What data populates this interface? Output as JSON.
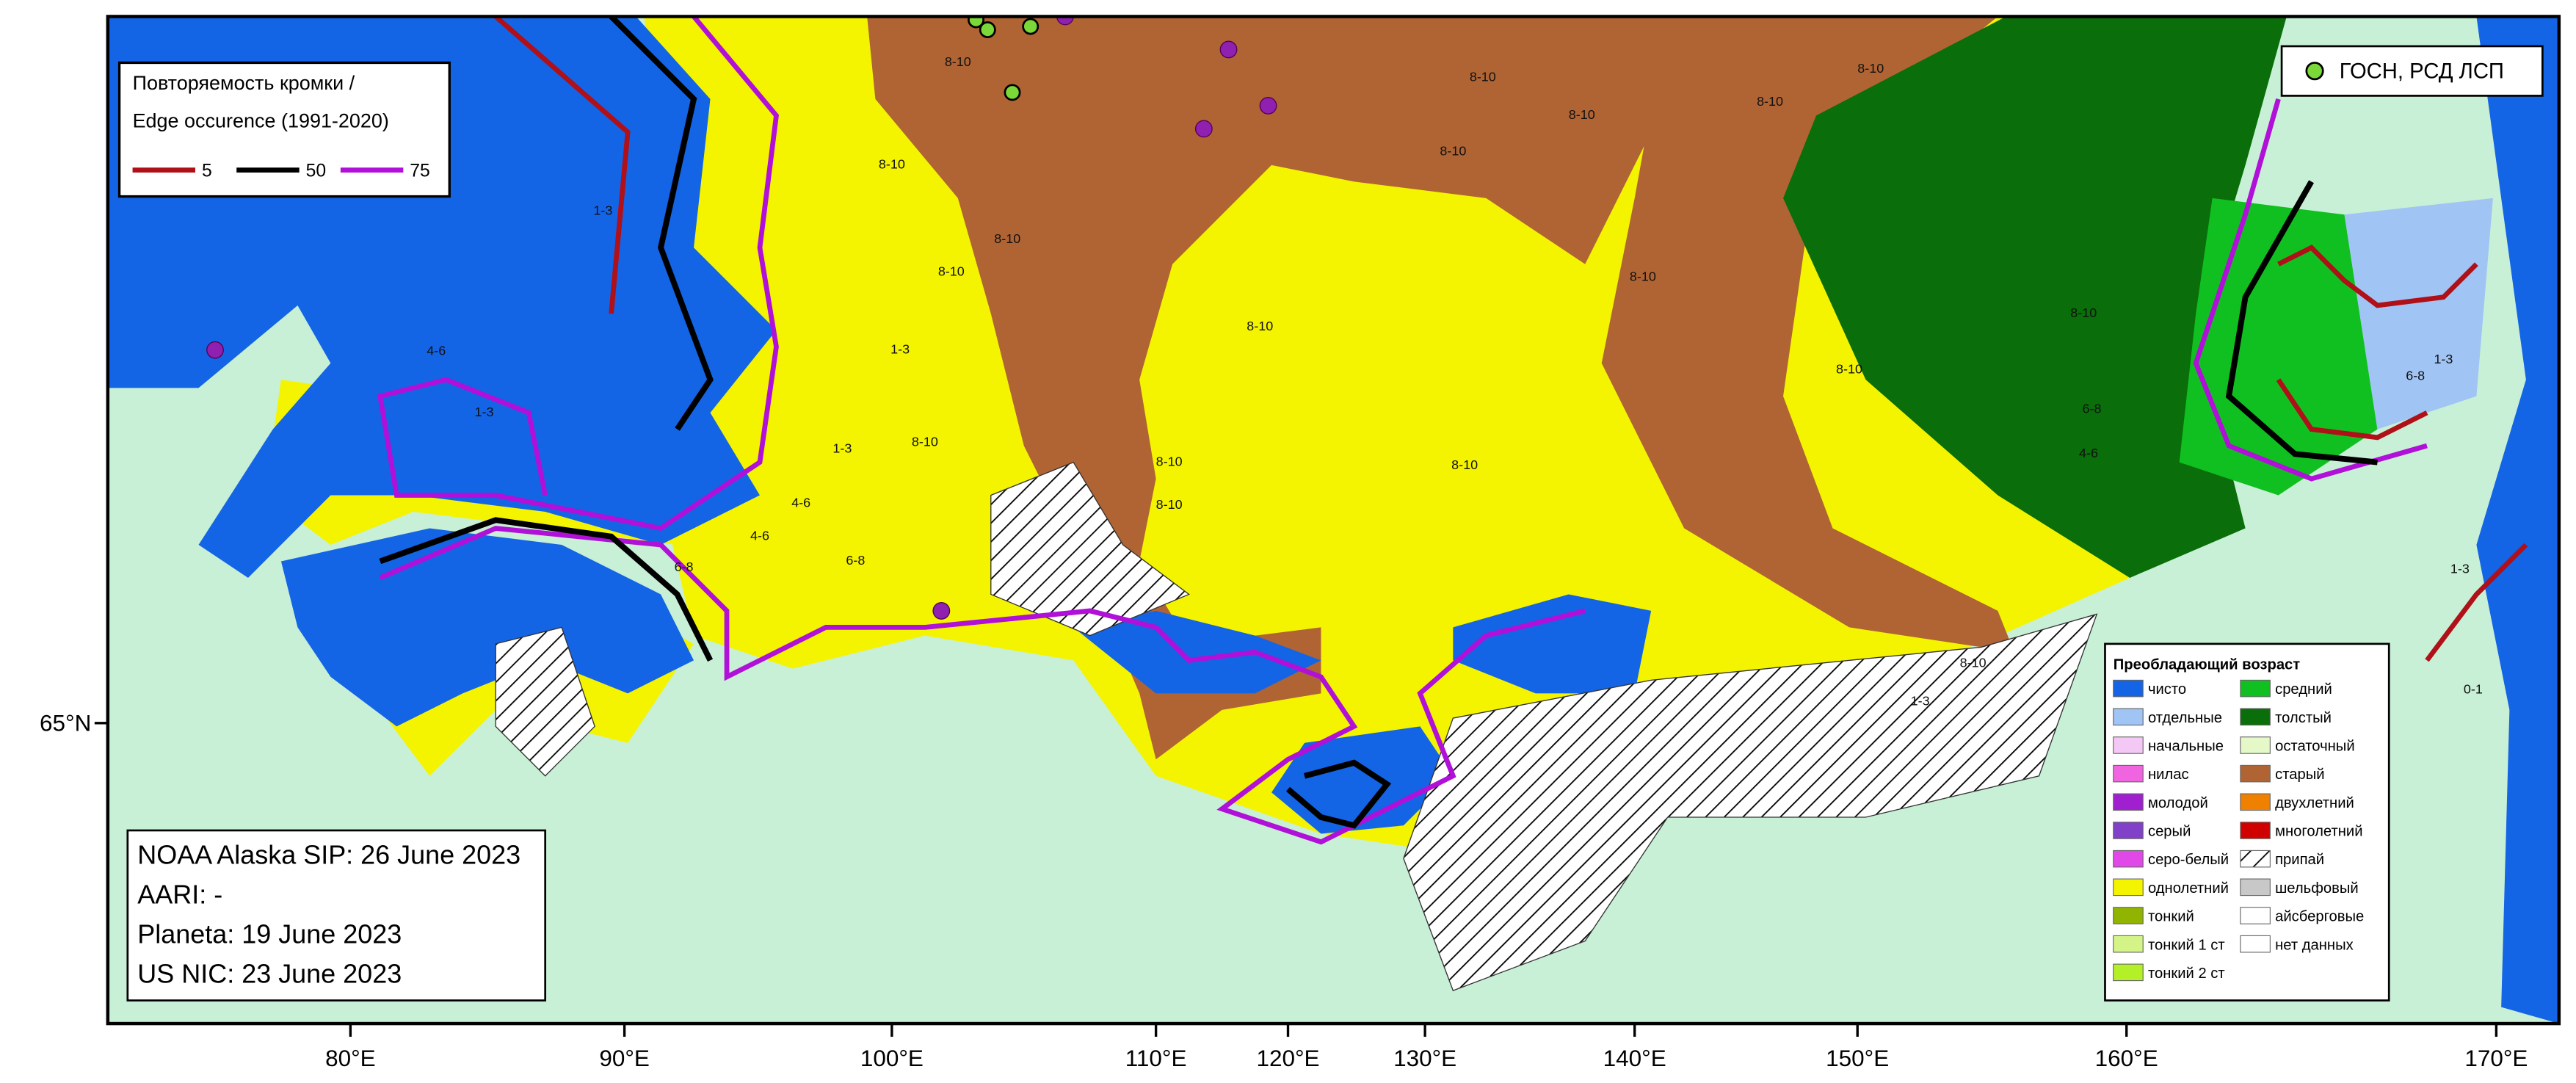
{
  "edge_legend": {
    "title_lines": [
      "Повторяемость кромки /",
      "Edge occurence (1991-2020)"
    ],
    "items": [
      {
        "label": "5",
        "color": "#b01018"
      },
      {
        "label": "50",
        "color": "#000000"
      },
      {
        "label": "75",
        "color": "#b010d8"
      }
    ]
  },
  "points_legend": {
    "label": "ГОСН, РСД ЛСП",
    "color": "#7ad838"
  },
  "age_legend": {
    "title": "Преобладающий возраст",
    "items": [
      {
        "label": "чисто",
        "color": "#1464e6"
      },
      {
        "label": "отдельные",
        "color": "#a0c4f4"
      },
      {
        "label": "начальные",
        "color": "#f4c8f4"
      },
      {
        "label": "нилас",
        "color": "#f064e0"
      },
      {
        "label": "молодой",
        "color": "#a020d0"
      },
      {
        "label": "серый",
        "color": "#8040c8"
      },
      {
        "label": "серо-белый",
        "color": "#e048e8"
      },
      {
        "label": "однолетний",
        "color": "#f4f400"
      },
      {
        "label": "тонкий",
        "color": "#90b400"
      },
      {
        "label": "тонкий 1 ст",
        "color": "#d4f488"
      },
      {
        "label": "тонкий 2 ст",
        "color": "#b4f028"
      },
      {
        "label": "средний",
        "color": "#10c020"
      },
      {
        "label": "толстый",
        "color": "#0a6e0a"
      },
      {
        "label": "остаточный",
        "color": "#e4f8c8"
      },
      {
        "label": "старый",
        "color": "#b06434"
      },
      {
        "label": "двухлетний",
        "color": "#f08000"
      },
      {
        "label": "многолетний",
        "color": "#d00000"
      },
      {
        "label": "припай",
        "color": "hatch"
      },
      {
        "label": "шельфовый",
        "color": "#c8c8c8"
      },
      {
        "label": "айсберговые",
        "color": "#ffffff"
      },
      {
        "label": "нет данных",
        "color": "#ffffff"
      }
    ]
  },
  "sources": [
    "NOAA Alaska SIP: 26 June 2023",
    "AARI: -",
    "Planeta: 19 June 2023",
    "US NIC: 23 June 2023"
  ],
  "lon_labels": [
    "80°E",
    "90°E",
    "100°E",
    "110°E",
    "120°E",
    "130°E",
    "140°E",
    "150°E",
    "160°E",
    "170°E"
  ],
  "lat_labels": [
    "65°N"
  ],
  "region_labels": [
    "8-10",
    "8-10",
    "8-10",
    "8-10",
    "8-10",
    "8-10",
    "8-10",
    "8-10",
    "8-10",
    "8-10",
    "8-10",
    "8-10",
    "8-10",
    "8-10",
    "8-10",
    "8-10",
    "1-3",
    "1-3",
    "1-3",
    "4-6",
    "4-6",
    "6-8",
    "6-8",
    "1-3",
    "4-6",
    "8-10",
    "1-3",
    "6-8",
    "4-6",
    "1-3",
    "8-10",
    "6-8",
    "0-1",
    "1-3"
  ]
}
